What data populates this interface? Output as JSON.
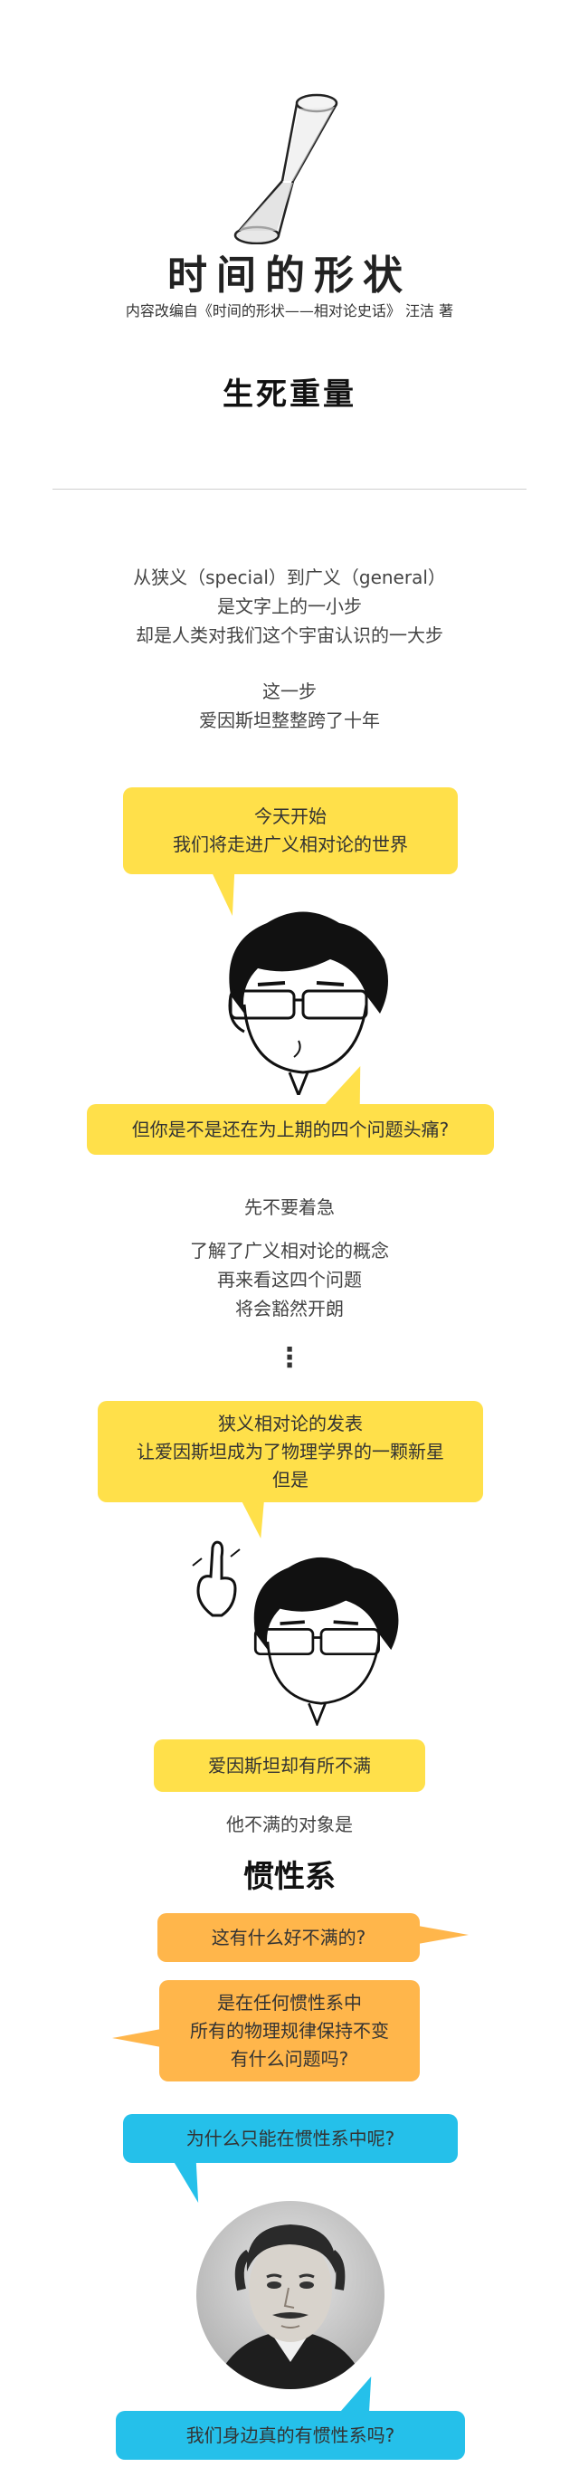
{
  "header": {
    "title": "时间的形状",
    "subtitle": "内容改编自《时间的形状——相对论史话》 汪洁 著",
    "section": "生死重量"
  },
  "intro": {
    "line1": "从狭义（special）到广义（general）",
    "line2": "是文字上的一小步",
    "line3": "却是人类对我们这个宇宙认识的一大步",
    "line4": "这一步",
    "line5": "爱因斯坦整整跨了十年"
  },
  "bubble1": {
    "line1": "今天开始",
    "line2": "我们将走进广义相对论的世界"
  },
  "bubble2": {
    "line1": "但你是不是还在为上期的四个问题头痛?"
  },
  "middle": {
    "line1": "先不要着急",
    "line2": "了解了广义相对论的概念",
    "line3": "再来看这四个问题",
    "line4": "将会豁然开朗",
    "dots": "⋮"
  },
  "bubble3": {
    "line1": "狭义相对论的发表",
    "line2": "让爱因斯坦成为了物理学界的一颗新星",
    "line3": "但是"
  },
  "bubble4": {
    "line1": "爱因斯坦却有所不满"
  },
  "dissatisfaction": {
    "line1": "他不满的对象是",
    "emphasis": "惯性系"
  },
  "bubble5": {
    "line1": "这有什么好不满的?"
  },
  "bubble6": {
    "line1": "是在任何惯性系中",
    "line2": "所有的物理规律保持不变",
    "line3": "有什么问题吗?"
  },
  "bubble7": {
    "line1": "为什么只能在惯性系中呢?"
  },
  "bubble8": {
    "line1": "我们身边真的有惯性系吗?"
  },
  "colors": {
    "yellow": "#ffe04a",
    "orange": "#ffb64b",
    "blue": "#25c0ea"
  },
  "icons": [
    "hourglass-icon",
    "cartoon-face",
    "finger-point-icon",
    "einstein-portrait"
  ]
}
